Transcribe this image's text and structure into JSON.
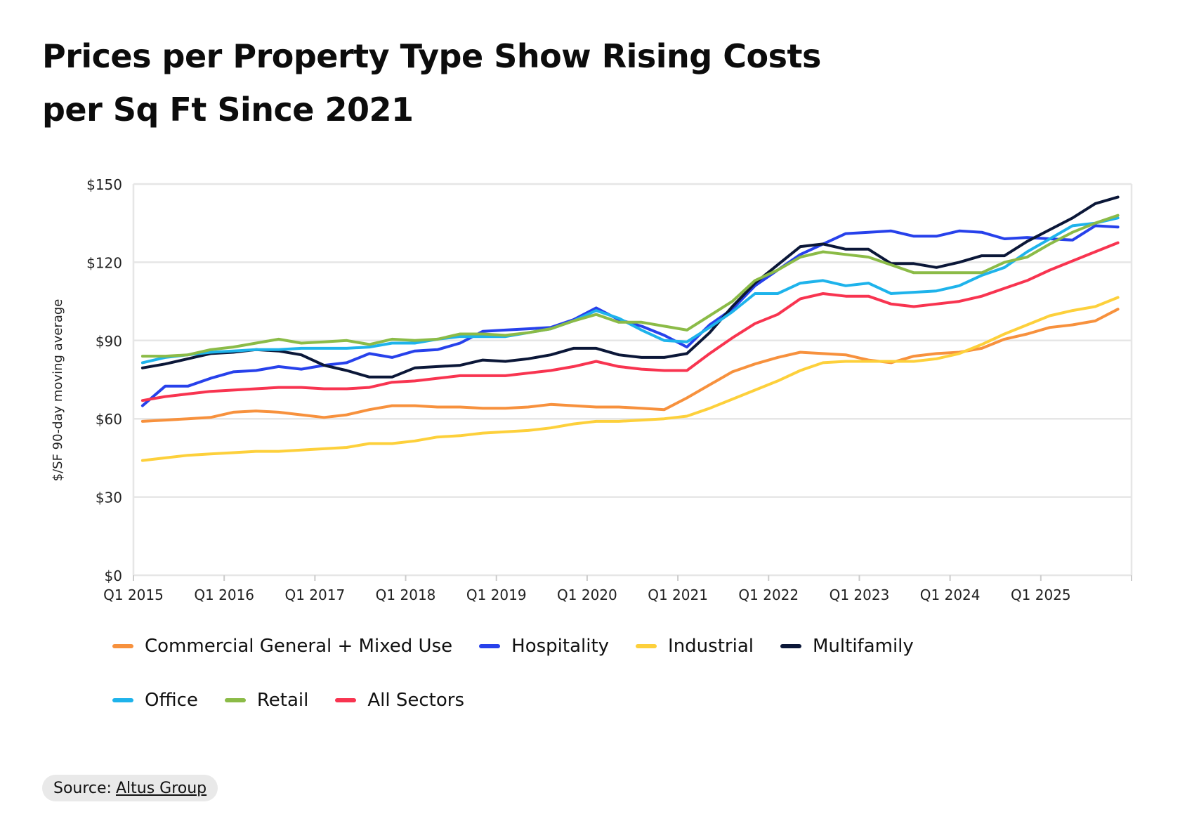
{
  "chart_data": {
    "type": "line",
    "title": "Prices per Property Type Show Rising Costs per Sq Ft Since 2021",
    "ylabel": "$/SF 90-day moving average",
    "xlabel": "",
    "ylim": [
      0,
      150
    ],
    "y_ticks": [
      0,
      30,
      60,
      90,
      120,
      150
    ],
    "y_tick_labels": [
      "$0",
      "$30",
      "$60",
      "$90",
      "$120",
      "$150"
    ],
    "x_tick_labels": [
      "Q1 2015",
      "Q1 2016",
      "Q1 2017",
      "Q1 2018",
      "Q1 2019",
      "Q1 2020",
      "Q1 2021",
      "Q1 2022",
      "Q1 2023",
      "Q1 2024",
      "Q1 2025"
    ],
    "x_start_year": 2015,
    "x_end_year": 2026,
    "grid": true,
    "legend_position": "bottom",
    "x": [
      2015.1,
      2015.35,
      2015.6,
      2015.85,
      2016.1,
      2016.35,
      2016.6,
      2016.85,
      2017.1,
      2017.35,
      2017.6,
      2017.85,
      2018.1,
      2018.35,
      2018.6,
      2018.85,
      2019.1,
      2019.35,
      2019.6,
      2019.85,
      2020.1,
      2020.35,
      2020.6,
      2020.85,
      2021.1,
      2021.35,
      2021.6,
      2021.85,
      2022.1,
      2022.35,
      2022.6,
      2022.85,
      2023.1,
      2023.35,
      2023.6,
      2023.85,
      2024.1,
      2024.35,
      2024.6,
      2024.85,
      2025.1,
      2025.35,
      2025.6,
      2025.85
    ],
    "series": [
      {
        "name": "Commercial General + Mixed Use",
        "color": "#f7913d",
        "values": [
          59,
          59.5,
          60,
          60.5,
          62.5,
          63,
          62.5,
          61.5,
          60.5,
          61.5,
          63.5,
          65,
          65,
          64.5,
          64.5,
          64,
          64,
          64.5,
          65.5,
          65,
          64.5,
          64.5,
          64,
          63.5,
          68,
          73,
          78,
          81,
          83.5,
          85.5,
          85,
          84.5,
          82.5,
          81.5,
          84,
          85,
          85.5,
          87,
          90.5,
          92.5,
          95,
          96,
          97.5,
          102
        ]
      },
      {
        "name": "Hospitality",
        "color": "#2741eb",
        "values": [
          65,
          72.5,
          72.5,
          75.5,
          78,
          78.5,
          80,
          79,
          80.5,
          81.5,
          85,
          83.5,
          86,
          86.5,
          89,
          93.5,
          94,
          94.5,
          95,
          98,
          102.5,
          98,
          95.5,
          92,
          87.5,
          96,
          102,
          111,
          117,
          123,
          127,
          131,
          131.5,
          132,
          130,
          130,
          132,
          131.5,
          129,
          129.5,
          129,
          128.5,
          134,
          133.5
        ]
      },
      {
        "name": "Industrial",
        "color": "#fdd03b",
        "values": [
          44,
          45,
          46,
          46.5,
          47,
          47.5,
          47.5,
          48,
          48.5,
          49,
          50.5,
          50.5,
          51.5,
          53,
          53.5,
          54.5,
          55,
          55.5,
          56.5,
          58,
          59,
          59,
          59.5,
          60,
          61,
          64,
          67.5,
          71,
          74.5,
          78.5,
          81.5,
          82,
          82,
          82,
          82,
          83,
          85,
          88.5,
          92.5,
          96,
          99.5,
          101.5,
          103,
          106.5
        ]
      },
      {
        "name": "Multifamily",
        "color": "#0b1738",
        "values": [
          79.5,
          81,
          83,
          85,
          85.5,
          86.5,
          86,
          84.5,
          80.5,
          78.5,
          76,
          76,
          79.5,
          80,
          80.5,
          82.5,
          82,
          83,
          84.5,
          87,
          87,
          84.5,
          83.5,
          83.5,
          85,
          93,
          103,
          112,
          119,
          126,
          127,
          125,
          125,
          119.5,
          119.5,
          118,
          120,
          122.5,
          122.5,
          128,
          132.5,
          137,
          142.5,
          145
        ]
      },
      {
        "name": "Office",
        "color": "#1eb3eb",
        "values": [
          81.5,
          83.5,
          84.5,
          85.5,
          86,
          86.5,
          86.5,
          87,
          87,
          87,
          87.5,
          89,
          89,
          90.5,
          91.5,
          91.5,
          91.5,
          93,
          94.5,
          97.5,
          101.5,
          98.5,
          94,
          90,
          89.5,
          95,
          101,
          108,
          108,
          112,
          113,
          111,
          112,
          108,
          108.5,
          109,
          111,
          115,
          118,
          124,
          129,
          134,
          135,
          137
        ]
      },
      {
        "name": "Retail",
        "color": "#8bbb47",
        "values": [
          84,
          84,
          84.5,
          86.5,
          87.5,
          89,
          90.5,
          89,
          89.5,
          90,
          88.5,
          90.5,
          90,
          90.5,
          92.5,
          92.5,
          92,
          93,
          94.5,
          97.5,
          100,
          97,
          97,
          95.5,
          94,
          99.5,
          105,
          113,
          117,
          122,
          124,
          123,
          122,
          119,
          116,
          116,
          116,
          116,
          120,
          122,
          127,
          131.5,
          135,
          138
        ]
      },
      {
        "name": "All Sectors",
        "color": "#f83450",
        "values": [
          67,
          68.5,
          69.5,
          70.5,
          71,
          71.5,
          72,
          72,
          71.5,
          71.5,
          72,
          74,
          74.5,
          75.5,
          76.5,
          76.5,
          76.5,
          77.5,
          78.5,
          80,
          82,
          80,
          79,
          78.5,
          78.5,
          85,
          91,
          96.5,
          100,
          106,
          108,
          107,
          107,
          104,
          103,
          104,
          105,
          107,
          110,
          113,
          117,
          120.5,
          124,
          127.5
        ]
      }
    ]
  },
  "title_line1": "Prices per Property Type Show Rising Costs",
  "title_line2": "per Sq Ft Since 2021",
  "legend_rows": [
    [
      "Commercial General + Mixed Use",
      "Hospitality",
      "Industrial",
      "Multifamily"
    ],
    [
      "Office",
      "Retail",
      "All Sectors"
    ]
  ],
  "source": {
    "prefix": "Source:",
    "link_text": "Altus Group"
  }
}
